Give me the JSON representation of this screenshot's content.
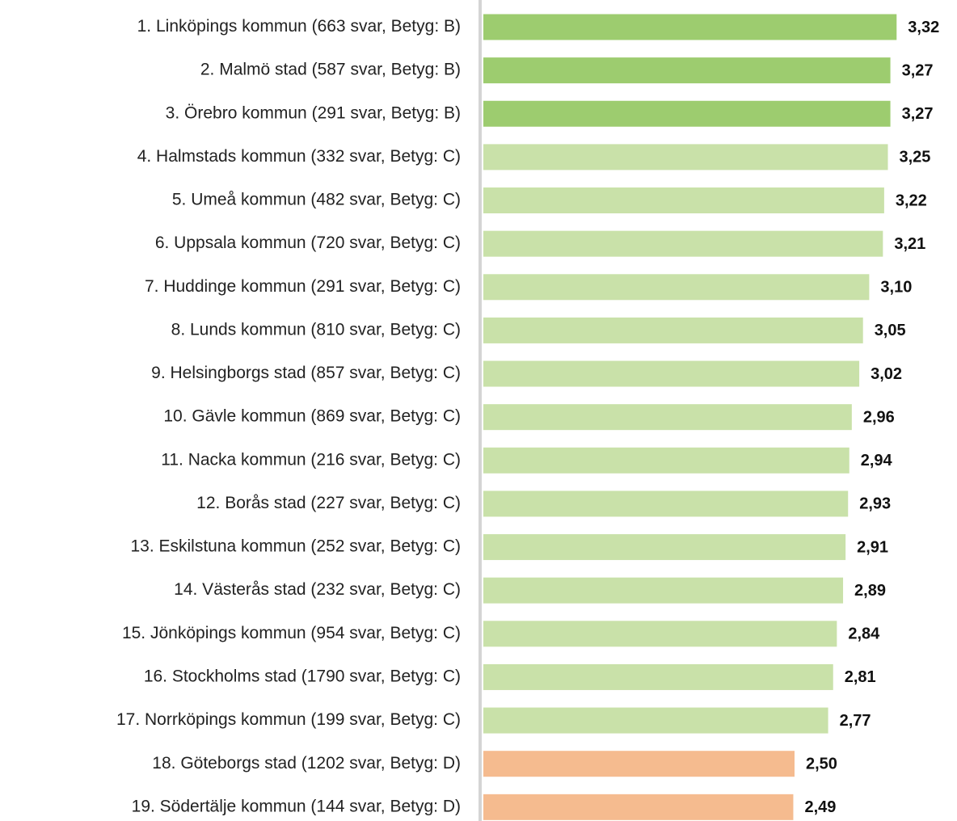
{
  "chart_data": {
    "type": "bar",
    "orientation": "horizontal",
    "categories": [
      "1. Linköpings kommun (663 svar, Betyg: B)",
      "2. Malmö stad (587 svar, Betyg: B)",
      "3. Örebro kommun (291 svar, Betyg: B)",
      "4. Halmstads kommun (332 svar, Betyg: C)",
      "5. Umeå kommun (482 svar, Betyg: C)",
      "6. Uppsala kommun (720 svar, Betyg: C)",
      "7. Huddinge kommun (291 svar, Betyg: C)",
      "8. Lunds kommun (810 svar, Betyg: C)",
      "9. Helsingborgs stad (857 svar, Betyg: C)",
      "10. Gävle kommun (869 svar, Betyg: C)",
      "11. Nacka kommun (216 svar, Betyg: C)",
      "12. Borås stad (227 svar, Betyg: C)",
      "13. Eskilstuna kommun (252 svar, Betyg: C)",
      "14. Västerås stad (232 svar, Betyg: C)",
      "15. Jönköpings kommun (954 svar, Betyg: C)",
      "16. Stockholms stad (1790 svar, Betyg: C)",
      "17. Norrköpings kommun (199 svar, Betyg: C)",
      "18. Göteborgs stad (1202 svar, Betyg: D)",
      "19. Södertälje kommun (144 svar, Betyg: D)"
    ],
    "values": [
      3.32,
      3.27,
      3.27,
      3.25,
      3.22,
      3.21,
      3.1,
      3.05,
      3.02,
      2.96,
      2.94,
      2.93,
      2.91,
      2.89,
      2.84,
      2.81,
      2.77,
      2.5,
      2.49
    ],
    "value_labels": [
      "3,32",
      "3,27",
      "3,27",
      "3,25",
      "3,22",
      "3,21",
      "3,10",
      "3,05",
      "3,02",
      "2,96",
      "2,94",
      "2,93",
      "2,91",
      "2,89",
      "2,84",
      "2,81",
      "2,77",
      "2,50",
      "2,49"
    ],
    "colors": [
      "#9dcc6f",
      "#9dcc6f",
      "#9dcc6f",
      "#c9e1a9",
      "#c9e1a9",
      "#c9e1a9",
      "#c9e1a9",
      "#c9e1a9",
      "#c9e1a9",
      "#c9e1a9",
      "#c9e1a9",
      "#c9e1a9",
      "#c9e1a9",
      "#c9e1a9",
      "#c9e1a9",
      "#c9e1a9",
      "#c9e1a9",
      "#f5bb8f",
      "#f5bb8f"
    ]
  }
}
